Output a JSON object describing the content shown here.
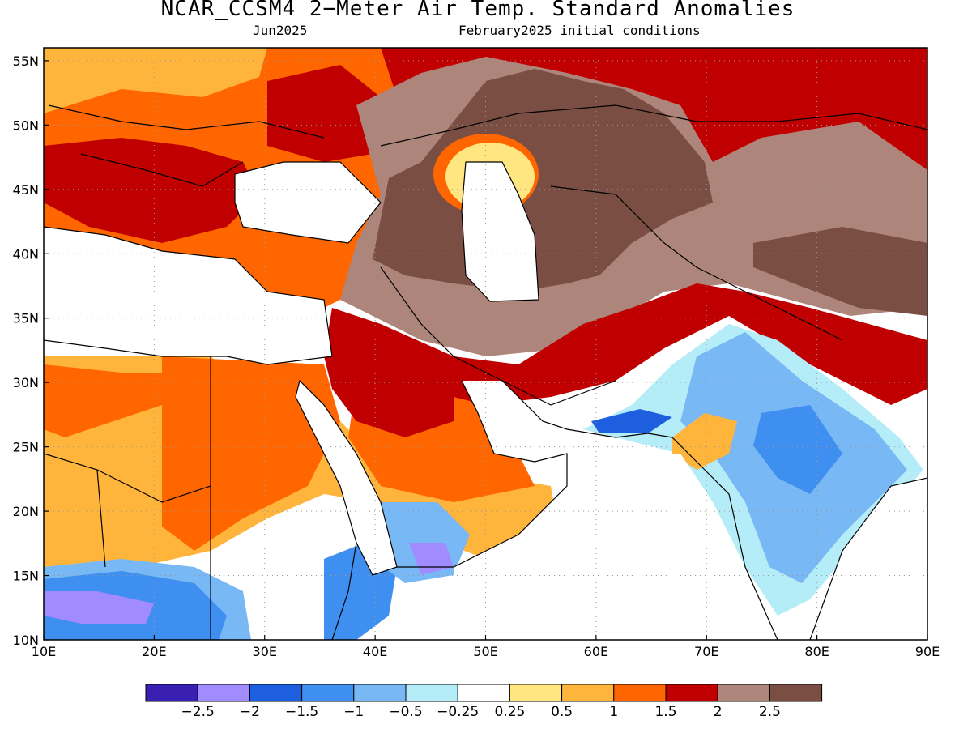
{
  "title": "NCAR_CCSM4 2−Meter Air Temp. Standard Anomalies",
  "subtitle_left": "Jun2025",
  "subtitle_right": "February2025 initial conditions",
  "lon_ticks": [
    "10E",
    "20E",
    "30E",
    "40E",
    "50E",
    "60E",
    "70E",
    "80E",
    "90E"
  ],
  "lat_ticks": [
    "10N",
    "15N",
    "20N",
    "25N",
    "30N",
    "35N",
    "40N",
    "45N",
    "50N",
    "55N"
  ],
  "colorbar": {
    "colors": [
      "#3a1fb3",
      "#a08cff",
      "#1e5fe0",
      "#3e8ff0",
      "#78b8f5",
      "#b4ecf8",
      "#ffffff",
      "#ffe680",
      "#ffb43c",
      "#ff6600",
      "#c00000",
      "#ad857a",
      "#7b4e44"
    ],
    "labels": [
      "−2.5",
      "−2",
      "−1.5",
      "−1",
      "−0.5",
      "−0.25",
      "0.25",
      "0.5",
      "1",
      "1.5",
      "2",
      "2.5"
    ]
  },
  "map_colors": {
    "background": "#ffffff",
    "gridline": "#999999",
    "coastline": "#000000"
  }
}
